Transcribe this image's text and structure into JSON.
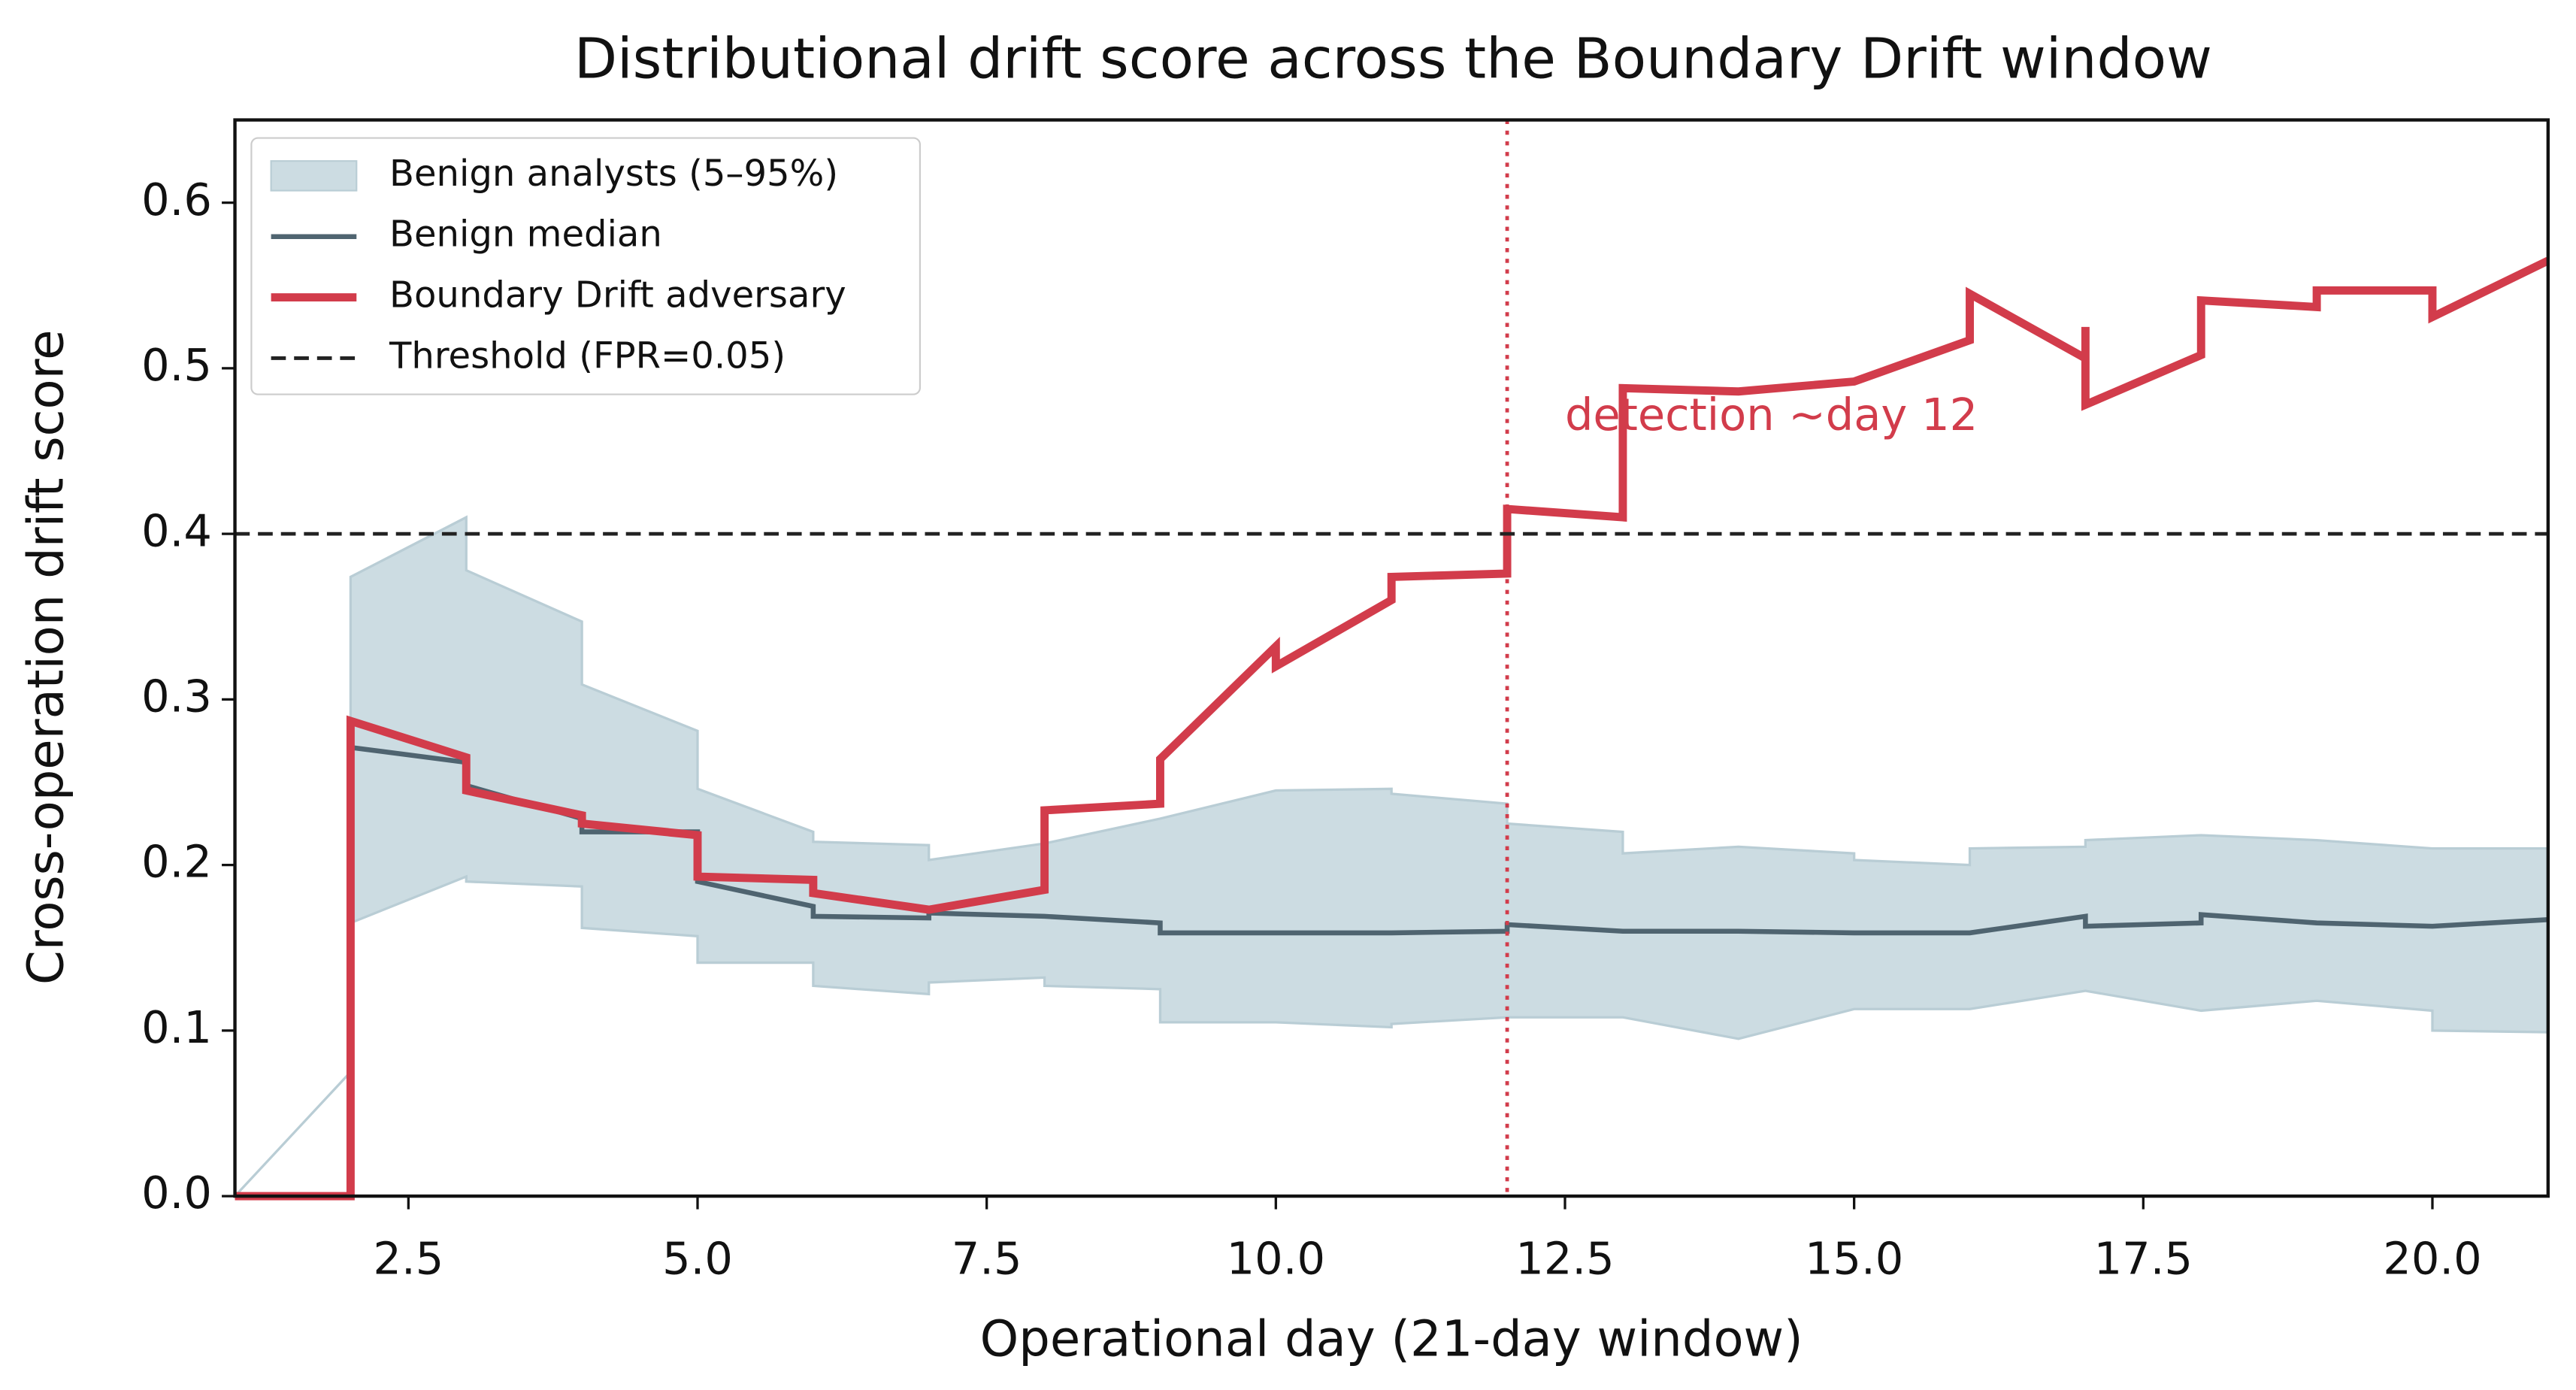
{
  "chart_data": {
    "type": "line",
    "title": "Distributional drift score across the Boundary Drift window",
    "x_label": "Operational day (21-day window)",
    "y_label": "Cross-operation drift score",
    "xlim": [
      1,
      21
    ],
    "ylim": [
      0,
      0.65
    ],
    "xticks": [
      2.5,
      {
        "value": 5,
        "label": "5.0"
      },
      7.5,
      {
        "value": 10,
        "label": "10.0"
      },
      12.5,
      {
        "value": 15,
        "label": "15.0"
      },
      17.5,
      {
        "value": 20,
        "label": "20.0"
      }
    ],
    "yticks": [
      {
        "value": 0,
        "label": "0.0"
      },
      0.1,
      0.2,
      0.3,
      0.4,
      0.5,
      0.6
    ],
    "legend": "upper left",
    "series": [
      {
        "name": "Benign analysts (5–95%)",
        "kind": "band",
        "color": "#ccdce2",
        "x": [
          1,
          2,
          2,
          3,
          3,
          4,
          4,
          5,
          5,
          6,
          6,
          7,
          7,
          8,
          8,
          9,
          9,
          10,
          11,
          11,
          12,
          12,
          13,
          13,
          14,
          15,
          15,
          16,
          16,
          17,
          17,
          18,
          19,
          20,
          20,
          21
        ],
        "lower": [
          0,
          0.075,
          0.165,
          0.193,
          0.19,
          0.187,
          0.162,
          0.157,
          0.141,
          0.141,
          0.127,
          0.122,
          0.129,
          0.132,
          0.127,
          0.125,
          0.105,
          0.105,
          0.102,
          0.104,
          0.108,
          0.108,
          0.108,
          0.108,
          0.095,
          0.113,
          0.113,
          0.113,
          0.113,
          0.124,
          0.124,
          0.112,
          0.118,
          0.112,
          0.1,
          0.099
        ],
        "upper": [
          0,
          0.075,
          0.374,
          0.41,
          0.378,
          0.347,
          0.309,
          0.281,
          0.246,
          0.22,
          0.214,
          0.212,
          0.203,
          0.213,
          0.213,
          0.228,
          0.228,
          0.245,
          0.246,
          0.243,
          0.237,
          0.225,
          0.22,
          0.207,
          0.211,
          0.207,
          0.203,
          0.2,
          0.21,
          0.211,
          0.215,
          0.218,
          0.215,
          0.21,
          0.21,
          0.21
        ]
      },
      {
        "name": "Benign median",
        "kind": "line",
        "color": "#4f6470",
        "x": [
          2,
          3,
          3,
          4,
          4,
          5,
          5,
          6,
          6,
          7,
          7,
          8,
          9,
          9,
          10,
          11,
          12,
          12,
          13,
          14,
          15,
          16,
          17,
          17,
          18,
          18,
          19,
          20,
          21
        ],
        "values": [
          0.271,
          0.262,
          0.248,
          0.228,
          0.22,
          0.22,
          0.19,
          0.175,
          0.169,
          0.168,
          0.171,
          0.169,
          0.165,
          0.159,
          0.159,
          0.159,
          0.16,
          0.164,
          0.16,
          0.16,
          0.159,
          0.159,
          0.169,
          0.163,
          0.165,
          0.17,
          0.165,
          0.163,
          0.167
        ]
      },
      {
        "name": "Boundary Drift adversary",
        "kind": "line",
        "color": "#d23c4b",
        "x": [
          1,
          2,
          2,
          3,
          3,
          4,
          4,
          5,
          5,
          6,
          6,
          7,
          8,
          8,
          9,
          9,
          10,
          10,
          11,
          11,
          12,
          12,
          13,
          13,
          14,
          15,
          16,
          16,
          17,
          17,
          17,
          18,
          18,
          19,
          19,
          20,
          20,
          21
        ],
        "values": [
          0,
          0,
          0.287,
          0.265,
          0.245,
          0.23,
          0.225,
          0.218,
          0.193,
          0.191,
          0.183,
          0.173,
          0.185,
          0.233,
          0.237,
          0.264,
          0.332,
          0.32,
          0.36,
          0.374,
          0.376,
          0.415,
          0.41,
          0.488,
          0.486,
          0.492,
          0.517,
          0.545,
          0.506,
          0.525,
          0.478,
          0.508,
          0.541,
          0.537,
          0.547,
          0.547,
          0.531,
          0.565
        ]
      }
    ],
    "threshold": {
      "name": "Threshold (FPR=0.05)",
      "value": 0.4,
      "color": "#222222"
    },
    "detection": {
      "x": 12,
      "label": "detection ~day 12",
      "label_x": 12.5,
      "label_y": 0.47,
      "color": "#d23c4b"
    }
  }
}
